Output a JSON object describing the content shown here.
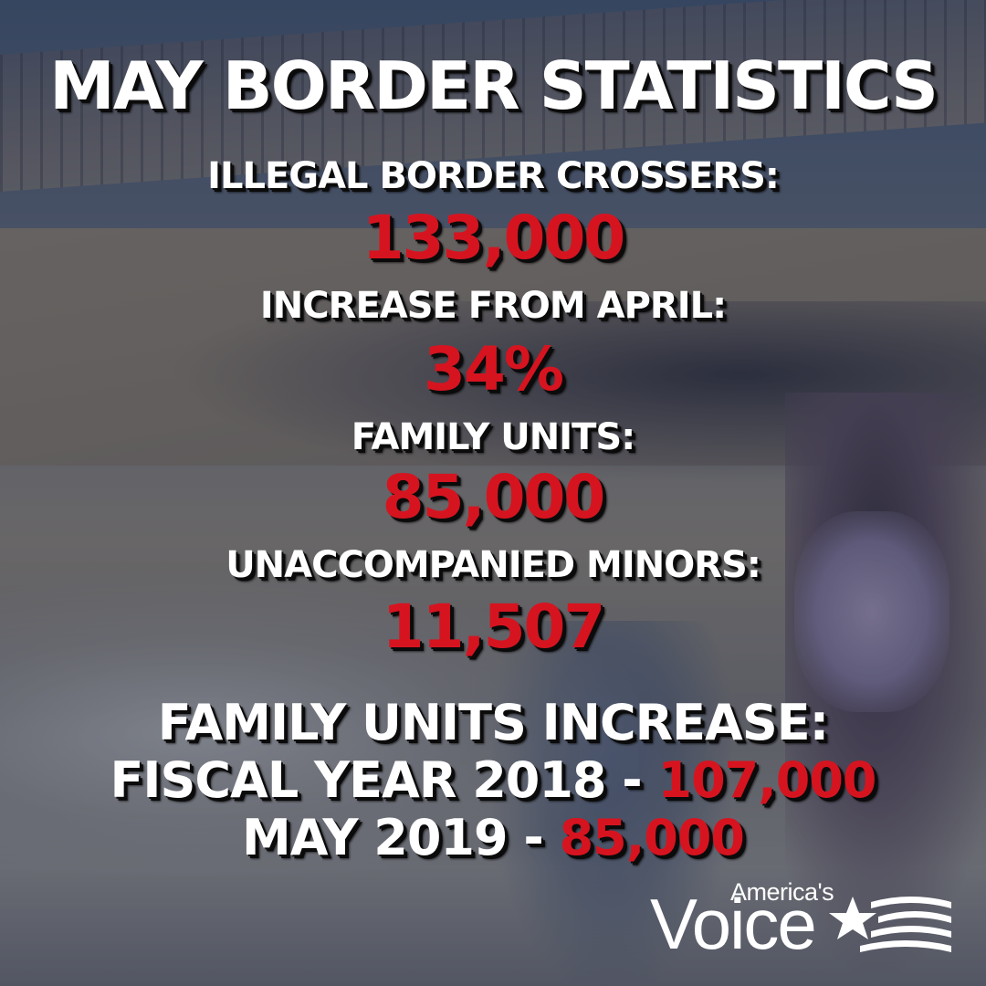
{
  "title": "MAY BORDER STATISTICS",
  "stats": [
    {
      "label": "ILLEGAL BORDER CROSSERS:",
      "value": "133,000"
    },
    {
      "label": "INCREASE FROM APRIL:",
      "value": "34%"
    },
    {
      "label": "FAMILY UNITS:",
      "value": "85,000"
    },
    {
      "label": "UNACCOMPANIED MINORS:",
      "value": "11,507"
    }
  ],
  "family_increase": {
    "heading": "FAMILY UNITS INCREASE:",
    "fy2018_label": "FISCAL YEAR 2018 - ",
    "fy2018_value": "107,000",
    "may2019_label": "MAY 2019 - ",
    "may2019_value": "85,000"
  },
  "logo": {
    "top_text": "America's",
    "main_text": "Voice",
    "icon": "star-flag-icon"
  },
  "colors": {
    "text": "#ffffff",
    "accent": "#d61420",
    "shadow": "#0b0b0b"
  }
}
